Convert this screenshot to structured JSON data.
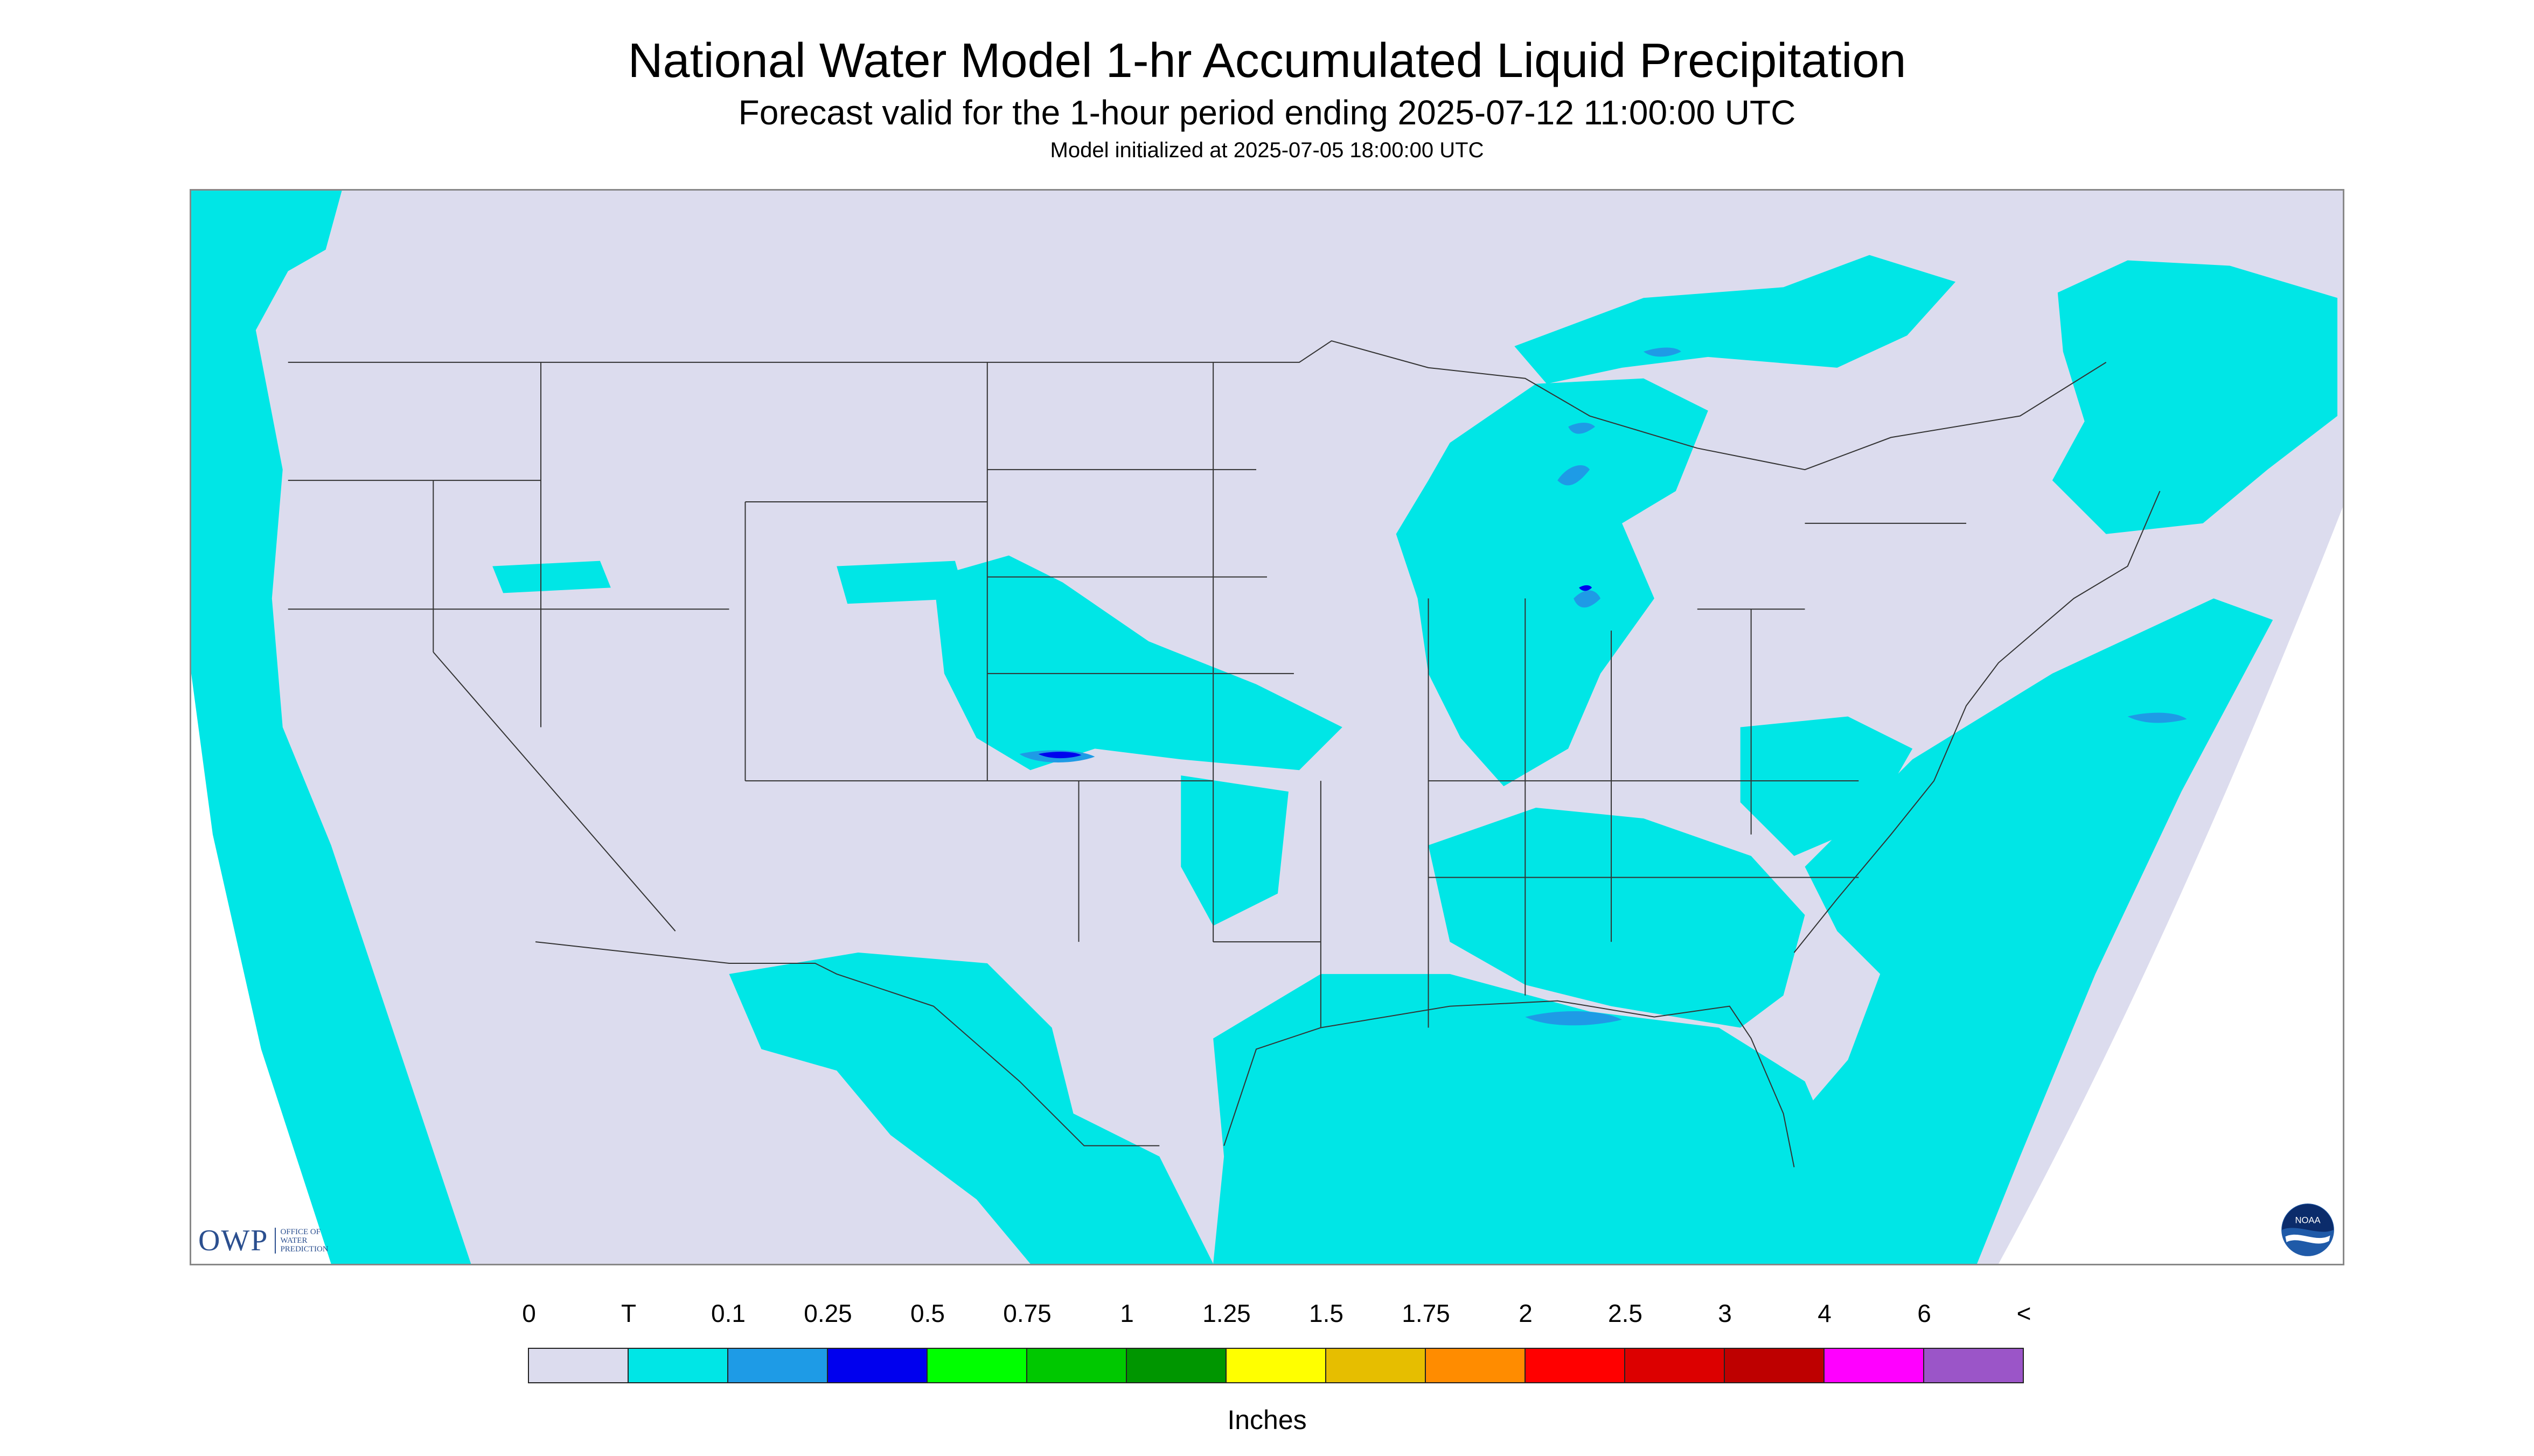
{
  "header": {
    "title": "National Water Model 1-hr Accumulated Liquid Precipitation",
    "subtitle": "Forecast valid for the 1-hour period ending 2025-07-12 11:00:00 UTC",
    "init": "Model initialized at 2025-07-05 18:00:00 UTC"
  },
  "map": {
    "region": "CONUS",
    "background_color": "#dcdcee",
    "outside_domain_color": "#ffffff",
    "boundary_color": "#333333",
    "features": [
      {
        "label": "trace",
        "value_range": "T-0.1",
        "color": "#00e6e6"
      },
      {
        "label": "0.1-0.25",
        "value_range": "0.1-0.25",
        "color": "#1e9be6"
      },
      {
        "label": "0.25-0.5",
        "value_range": "0.25-0.5",
        "color": "#0000ee"
      }
    ]
  },
  "logos": {
    "owp_text": "OWP",
    "owp_small": [
      "OFFICE OF",
      "WATER",
      "PREDICTION"
    ],
    "noaa_text": "NOAA"
  },
  "legend": {
    "labels": [
      "0",
      "T",
      "0.1",
      "0.25",
      "0.5",
      "0.75",
      "1",
      "1.25",
      "1.5",
      "1.75",
      "2",
      "2.5",
      "3",
      "4",
      "6",
      "<"
    ],
    "colors": [
      "#dcdcee",
      "#00e6e6",
      "#1e9be6",
      "#0000ee",
      "#00ff00",
      "#00c800",
      "#009600",
      "#ffff00",
      "#e6be00",
      "#ff8c00",
      "#ff0000",
      "#dc0000",
      "#be0000",
      "#ff00ff",
      "#9b55c8"
    ],
    "units": "Inches"
  }
}
